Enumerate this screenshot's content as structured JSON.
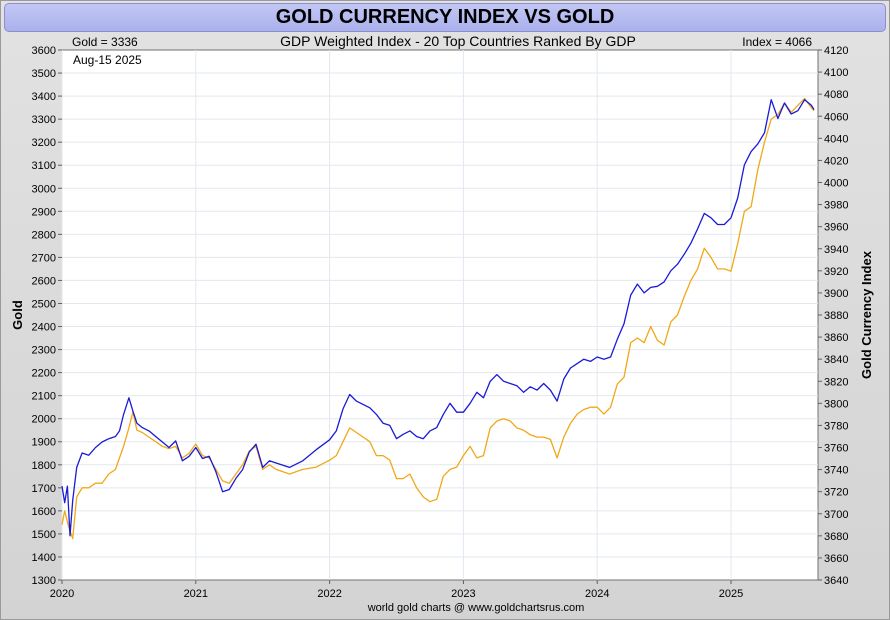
{
  "chart_data": {
    "type": "line",
    "title": "GOLD CURRENCY INDEX VS GOLD",
    "subtitle": "GDP Weighted Index - 20 Top Countries Ranked By GDP",
    "gold_readout": "Gold = 3336",
    "index_readout": "Index = 4066",
    "date_readout": "Aug-15  2025",
    "source": "world gold charts @ www.goldchartsrus.com",
    "ylabel_left": "Gold",
    "ylabel_right": "Gold Currency Index",
    "xlim": [
      2020.0,
      2025.65
    ],
    "ylim_left": [
      1300,
      3600
    ],
    "ylim_right": [
      3640,
      4120
    ],
    "x_ticks": [
      {
        "label": "2020",
        "value": 2020
      },
      {
        "label": "2021",
        "value": 2021
      },
      {
        "label": "2022",
        "value": 2022
      },
      {
        "label": "2023",
        "value": 2023
      },
      {
        "label": "2024",
        "value": 2024
      },
      {
        "label": "2025",
        "value": 2025
      }
    ],
    "y_ticks_left": [
      1300,
      1400,
      1500,
      1600,
      1700,
      1800,
      1900,
      2000,
      2100,
      2200,
      2300,
      2400,
      2500,
      2600,
      2700,
      2800,
      2900,
      3000,
      3100,
      3200,
      3300,
      3400,
      3500,
      3600
    ],
    "y_ticks_right": [
      3640,
      3660,
      3680,
      3700,
      3720,
      3740,
      3760,
      3780,
      3800,
      3820,
      3840,
      3860,
      3880,
      3900,
      3920,
      3940,
      3960,
      3980,
      4000,
      4020,
      4040,
      4060,
      4080,
      4100,
      4120
    ],
    "grid": true,
    "series": [
      {
        "name": "Gold",
        "axis": "left",
        "color": "#f0a818",
        "points": [
          [
            2020.0,
            1540
          ],
          [
            2020.02,
            1600
          ],
          [
            2020.05,
            1530
          ],
          [
            2020.08,
            1480
          ],
          [
            2020.11,
            1660
          ],
          [
            2020.15,
            1700
          ],
          [
            2020.2,
            1700
          ],
          [
            2020.25,
            1720
          ],
          [
            2020.3,
            1720
          ],
          [
            2020.35,
            1760
          ],
          [
            2020.4,
            1780
          ],
          [
            2020.43,
            1830
          ],
          [
            2020.46,
            1880
          ],
          [
            2020.5,
            1960
          ],
          [
            2020.53,
            2030
          ],
          [
            2020.56,
            1950
          ],
          [
            2020.6,
            1940
          ],
          [
            2020.65,
            1920
          ],
          [
            2020.7,
            1900
          ],
          [
            2020.75,
            1880
          ],
          [
            2020.8,
            1870
          ],
          [
            2020.85,
            1880
          ],
          [
            2020.9,
            1830
          ],
          [
            2020.95,
            1850
          ],
          [
            2021.0,
            1890
          ],
          [
            2021.05,
            1840
          ],
          [
            2021.1,
            1830
          ],
          [
            2021.15,
            1780
          ],
          [
            2021.2,
            1730
          ],
          [
            2021.25,
            1720
          ],
          [
            2021.3,
            1760
          ],
          [
            2021.35,
            1800
          ],
          [
            2021.4,
            1860
          ],
          [
            2021.45,
            1880
          ],
          [
            2021.5,
            1780
          ],
          [
            2021.55,
            1800
          ],
          [
            2021.6,
            1780
          ],
          [
            2021.7,
            1760
          ],
          [
            2021.8,
            1780
          ],
          [
            2021.9,
            1790
          ],
          [
            2022.0,
            1820
          ],
          [
            2022.05,
            1840
          ],
          [
            2022.1,
            1900
          ],
          [
            2022.15,
            1960
          ],
          [
            2022.2,
            1940
          ],
          [
            2022.3,
            1900
          ],
          [
            2022.35,
            1840
          ],
          [
            2022.4,
            1840
          ],
          [
            2022.45,
            1820
          ],
          [
            2022.5,
            1740
          ],
          [
            2022.55,
            1740
          ],
          [
            2022.6,
            1760
          ],
          [
            2022.65,
            1700
          ],
          [
            2022.7,
            1660
          ],
          [
            2022.75,
            1640
          ],
          [
            2022.8,
            1650
          ],
          [
            2022.85,
            1750
          ],
          [
            2022.9,
            1780
          ],
          [
            2022.95,
            1790
          ],
          [
            2023.0,
            1840
          ],
          [
            2023.05,
            1880
          ],
          [
            2023.1,
            1830
          ],
          [
            2023.15,
            1840
          ],
          [
            2023.2,
            1960
          ],
          [
            2023.25,
            1990
          ],
          [
            2023.3,
            2000
          ],
          [
            2023.35,
            1990
          ],
          [
            2023.4,
            1960
          ],
          [
            2023.45,
            1950
          ],
          [
            2023.5,
            1930
          ],
          [
            2023.55,
            1920
          ],
          [
            2023.6,
            1920
          ],
          [
            2023.65,
            1910
          ],
          [
            2023.7,
            1830
          ],
          [
            2023.75,
            1920
          ],
          [
            2023.8,
            1980
          ],
          [
            2023.85,
            2020
          ],
          [
            2023.9,
            2040
          ],
          [
            2023.95,
            2050
          ],
          [
            2024.0,
            2050
          ],
          [
            2024.05,
            2020
          ],
          [
            2024.1,
            2050
          ],
          [
            2024.15,
            2150
          ],
          [
            2024.2,
            2180
          ],
          [
            2024.25,
            2330
          ],
          [
            2024.3,
            2350
          ],
          [
            2024.35,
            2330
          ],
          [
            2024.4,
            2400
          ],
          [
            2024.45,
            2340
          ],
          [
            2024.5,
            2320
          ],
          [
            2024.55,
            2420
          ],
          [
            2024.6,
            2450
          ],
          [
            2024.65,
            2530
          ],
          [
            2024.7,
            2600
          ],
          [
            2024.75,
            2650
          ],
          [
            2024.8,
            2740
          ],
          [
            2024.85,
            2700
          ],
          [
            2024.9,
            2650
          ],
          [
            2024.95,
            2650
          ],
          [
            2025.0,
            2640
          ],
          [
            2025.05,
            2760
          ],
          [
            2025.1,
            2900
          ],
          [
            2025.15,
            2920
          ],
          [
            2025.2,
            3080
          ],
          [
            2025.25,
            3200
          ],
          [
            2025.3,
            3300
          ],
          [
            2025.35,
            3320
          ],
          [
            2025.4,
            3370
          ],
          [
            2025.45,
            3330
          ],
          [
            2025.5,
            3360
          ],
          [
            2025.55,
            3390
          ],
          [
            2025.6,
            3350
          ],
          [
            2025.62,
            3336
          ]
        ]
      },
      {
        "name": "Gold Currency Index",
        "axis": "right",
        "color": "#1a1ad8",
        "points": [
          [
            2020.0,
            3725
          ],
          [
            2020.02,
            3710
          ],
          [
            2020.04,
            3725
          ],
          [
            2020.06,
            3680
          ],
          [
            2020.08,
            3712
          ],
          [
            2020.11,
            3742
          ],
          [
            2020.15,
            3755
          ],
          [
            2020.2,
            3753
          ],
          [
            2020.25,
            3760
          ],
          [
            2020.3,
            3765
          ],
          [
            2020.35,
            3768
          ],
          [
            2020.4,
            3770
          ],
          [
            2020.43,
            3775
          ],
          [
            2020.46,
            3790
          ],
          [
            2020.5,
            3805
          ],
          [
            2020.53,
            3793
          ],
          [
            2020.56,
            3782
          ],
          [
            2020.6,
            3778
          ],
          [
            2020.65,
            3775
          ],
          [
            2020.7,
            3770
          ],
          [
            2020.75,
            3765
          ],
          [
            2020.8,
            3760
          ],
          [
            2020.85,
            3766
          ],
          [
            2020.9,
            3748
          ],
          [
            2020.95,
            3752
          ],
          [
            2021.0,
            3760
          ],
          [
            2021.05,
            3750
          ],
          [
            2021.1,
            3752
          ],
          [
            2021.15,
            3738
          ],
          [
            2021.2,
            3720
          ],
          [
            2021.25,
            3722
          ],
          [
            2021.3,
            3732
          ],
          [
            2021.35,
            3740
          ],
          [
            2021.4,
            3756
          ],
          [
            2021.45,
            3763
          ],
          [
            2021.5,
            3742
          ],
          [
            2021.55,
            3748
          ],
          [
            2021.6,
            3746
          ],
          [
            2021.7,
            3742
          ],
          [
            2021.8,
            3748
          ],
          [
            2021.9,
            3758
          ],
          [
            2022.0,
            3767
          ],
          [
            2022.05,
            3775
          ],
          [
            2022.1,
            3795
          ],
          [
            2022.15,
            3808
          ],
          [
            2022.2,
            3802
          ],
          [
            2022.3,
            3796
          ],
          [
            2022.35,
            3790
          ],
          [
            2022.4,
            3782
          ],
          [
            2022.45,
            3780
          ],
          [
            2022.5,
            3768
          ],
          [
            2022.55,
            3772
          ],
          [
            2022.6,
            3775
          ],
          [
            2022.65,
            3770
          ],
          [
            2022.7,
            3768
          ],
          [
            2022.75,
            3775
          ],
          [
            2022.8,
            3778
          ],
          [
            2022.85,
            3790
          ],
          [
            2022.9,
            3800
          ],
          [
            2022.95,
            3792
          ],
          [
            2023.0,
            3792
          ],
          [
            2023.05,
            3800
          ],
          [
            2023.1,
            3810
          ],
          [
            2023.15,
            3805
          ],
          [
            2023.2,
            3820
          ],
          [
            2023.25,
            3826
          ],
          [
            2023.3,
            3820
          ],
          [
            2023.35,
            3818
          ],
          [
            2023.4,
            3816
          ],
          [
            2023.45,
            3810
          ],
          [
            2023.5,
            3815
          ],
          [
            2023.55,
            3812
          ],
          [
            2023.6,
            3818
          ],
          [
            2023.65,
            3812
          ],
          [
            2023.7,
            3802
          ],
          [
            2023.75,
            3822
          ],
          [
            2023.8,
            3832
          ],
          [
            2023.85,
            3836
          ],
          [
            2023.9,
            3840
          ],
          [
            2023.95,
            3838
          ],
          [
            2024.0,
            3842
          ],
          [
            2024.05,
            3840
          ],
          [
            2024.1,
            3842
          ],
          [
            2024.15,
            3858
          ],
          [
            2024.2,
            3872
          ],
          [
            2024.25,
            3898
          ],
          [
            2024.3,
            3908
          ],
          [
            2024.35,
            3900
          ],
          [
            2024.4,
            3905
          ],
          [
            2024.45,
            3906
          ],
          [
            2024.5,
            3910
          ],
          [
            2024.55,
            3920
          ],
          [
            2024.6,
            3926
          ],
          [
            2024.65,
            3935
          ],
          [
            2024.7,
            3945
          ],
          [
            2024.75,
            3958
          ],
          [
            2024.8,
            3972
          ],
          [
            2024.85,
            3968
          ],
          [
            2024.9,
            3962
          ],
          [
            2024.95,
            3962
          ],
          [
            2025.0,
            3968
          ],
          [
            2025.05,
            3986
          ],
          [
            2025.1,
            4016
          ],
          [
            2025.15,
            4028
          ],
          [
            2025.2,
            4035
          ],
          [
            2025.25,
            4045
          ],
          [
            2025.3,
            4075
          ],
          [
            2025.35,
            4058
          ],
          [
            2025.4,
            4072
          ],
          [
            2025.45,
            4062
          ],
          [
            2025.5,
            4065
          ],
          [
            2025.55,
            4075
          ],
          [
            2025.6,
            4070
          ],
          [
            2025.62,
            4066
          ]
        ]
      }
    ]
  }
}
